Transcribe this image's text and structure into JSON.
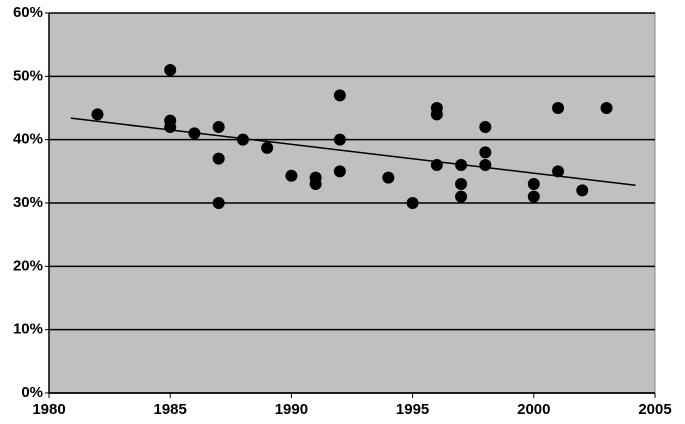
{
  "chart_data": {
    "type": "scatter",
    "x": [
      1982,
      1985,
      1985,
      1985,
      1986,
      1987,
      1987,
      1987,
      1988,
      1989,
      1990,
      1991,
      1991,
      1992,
      1992,
      1992,
      1994,
      1995,
      1996,
      1996,
      1996,
      1997,
      1997,
      1997,
      1998,
      1998,
      1998,
      2000,
      2000,
      2001,
      2001,
      2002,
      2003
    ],
    "values": [
      44,
      51,
      43,
      42,
      41,
      42,
      37,
      30,
      40,
      38.7,
      34.3,
      34,
      33,
      47,
      40,
      35,
      34,
      30,
      45,
      44,
      36,
      36,
      33,
      31,
      42,
      38,
      36,
      33,
      31,
      45,
      35,
      32,
      45
    ],
    "color": "#000000",
    "trendline": {
      "x": [
        1980.9,
        2004.2
      ],
      "values": [
        43.4,
        32.8
      ],
      "color": "#000000"
    },
    "xlim": [
      1980,
      2005
    ],
    "xticks": [
      1980,
      1985,
      1990,
      1995,
      2000,
      2005
    ],
    "ylim": [
      0,
      60
    ],
    "yticks": [
      {
        "value": 0,
        "label": "0%"
      },
      {
        "value": 10,
        "label": "10%"
      },
      {
        "value": 20,
        "label": "20%"
      },
      {
        "value": 30,
        "label": "30%"
      },
      {
        "value": 40,
        "label": "40%"
      },
      {
        "value": 50,
        "label": "50%"
      },
      {
        "value": 60,
        "label": "60%"
      }
    ],
    "grid": true
  }
}
